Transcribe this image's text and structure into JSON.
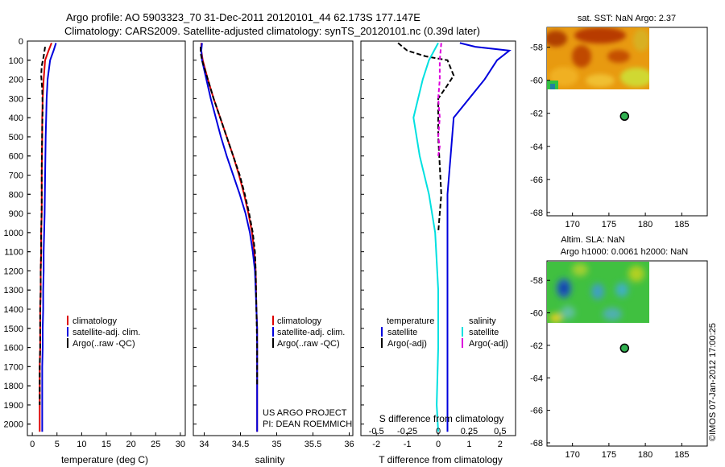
{
  "titles": {
    "line1": "Argo profile: AO 5903323_70 31-Dec-2011 20120101_44 62.173S 177.147E",
    "line2": "Climatology: CARS2009. Satellite-adjusted climatology: synTS_20120101.nc (0.39d later)"
  },
  "credit": "©IMOS 07-Jan-2012 17:00:25",
  "project": {
    "line1": "US ARGO PROJECT",
    "line2": "PI: DEAN ROEMMICH"
  },
  "colors": {
    "climatology": "#dd0000",
    "satellite": "#0000dd",
    "argo": "#000000",
    "sat_s": "#00e0e0",
    "argo_s": "#dd00dd"
  },
  "chart_data": [
    {
      "type": "line",
      "panel": "temperature",
      "xlabel": "temperature (deg C)",
      "xlim": [
        -1,
        31
      ],
      "xticks": [
        0,
        5,
        10,
        15,
        20,
        25,
        30
      ],
      "ylim": [
        2060,
        0
      ],
      "yticks": [
        0,
        100,
        200,
        300,
        400,
        500,
        600,
        700,
        800,
        900,
        1000,
        1100,
        1200,
        1300,
        1400,
        1500,
        1600,
        1700,
        1800,
        1900,
        2000
      ],
      "legend": [
        "climatology",
        "satellite-adj. clim.",
        "Argo(..raw -QC)"
      ],
      "series": [
        {
          "name": "climatology",
          "x": [
            3.9,
            3.3,
            2.6,
            2.3,
            2.1,
            2.0,
            2.0,
            1.9,
            1.9,
            1.8,
            1.8,
            1.7,
            1.7,
            1.6,
            1.6,
            1.6,
            1.5,
            1.5,
            1.5,
            1.5
          ],
          "y": [
            10,
            50,
            100,
            200,
            300,
            400,
            500,
            700,
            900,
            1000,
            1100,
            1200,
            1300,
            1400,
            1500,
            1600,
            1700,
            1800,
            1900,
            2040
          ]
        },
        {
          "name": "satellite-adj. clim.",
          "x": [
            4.8,
            4.3,
            3.6,
            3.1,
            2.9,
            2.8,
            2.7,
            2.6,
            2.5,
            2.4,
            2.3,
            2.3,
            2.2,
            2.2,
            2.1,
            2.1,
            2.0,
            2.0,
            2.0,
            2.0
          ],
          "y": [
            10,
            50,
            100,
            200,
            300,
            400,
            500,
            700,
            900,
            1000,
            1100,
            1200,
            1300,
            1400,
            1500,
            1600,
            1700,
            1800,
            1900,
            2040
          ]
        },
        {
          "name": "Argo(..raw -QC)",
          "x": [
            2.6,
            2.3,
            1.9,
            1.8,
            2.0,
            2.1,
            2.0,
            1.9,
            1.9,
            1.8,
            1.8,
            1.7,
            1.7,
            1.6,
            1.6,
            1.6,
            1.5,
            1.5,
            1.5
          ],
          "y": [
            30,
            80,
            130,
            180,
            250,
            350,
            450,
            650,
            850,
            1000,
            1100,
            1200,
            1300,
            1400,
            1500,
            1600,
            1700,
            1800,
            1900
          ]
        }
      ]
    },
    {
      "type": "line",
      "panel": "salinity",
      "xlabel": "salinity",
      "xlim": [
        33.85,
        36.05
      ],
      "xticks": [
        34,
        34.5,
        35,
        35.5,
        36
      ],
      "xticklabels": [
        "34",
        "34.5",
        "35",
        "35.5",
        "36"
      ],
      "ylim": [
        2060,
        0
      ],
      "legend": [
        "climatology",
        "satellite-adj. clim.",
        "Argo(..raw -QC)"
      ],
      "series": [
        {
          "name": "climatology",
          "x": [
            33.96,
            33.96,
            33.98,
            34.05,
            34.13,
            34.22,
            34.31,
            34.4,
            34.48,
            34.55,
            34.61,
            34.66,
            34.69,
            34.71,
            34.72,
            34.73,
            34.73,
            34.73,
            34.73,
            34.73,
            34.73
          ],
          "y": [
            10,
            50,
            100,
            200,
            300,
            400,
            500,
            600,
            700,
            800,
            900,
            1000,
            1100,
            1200,
            1400,
            1500,
            1600,
            1700,
            1800,
            1900,
            2040
          ]
        },
        {
          "name": "satellite-adj. clim.",
          "x": [
            33.97,
            33.96,
            33.97,
            34.03,
            34.09,
            34.16,
            34.23,
            34.31,
            34.4,
            34.49,
            34.57,
            34.63,
            34.67,
            34.7,
            34.72,
            34.73,
            34.73,
            34.73,
            34.73,
            34.73,
            34.73
          ],
          "y": [
            10,
            50,
            100,
            200,
            300,
            400,
            500,
            600,
            700,
            800,
            900,
            1000,
            1100,
            1200,
            1400,
            1500,
            1600,
            1700,
            1800,
            1900,
            2040
          ]
        },
        {
          "name": "Argo(..raw -QC)",
          "x": [
            33.95,
            33.95,
            33.97,
            34.05,
            34.13,
            34.22,
            34.31,
            34.4,
            34.49,
            34.56,
            34.62,
            34.67,
            34.7,
            34.71,
            34.72,
            34.73,
            34.73
          ],
          "y": [
            30,
            60,
            100,
            200,
            300,
            400,
            500,
            600,
            700,
            800,
            900,
            1000,
            1100,
            1200,
            1400,
            1600,
            1800
          ]
        }
      ]
    },
    {
      "type": "line",
      "panel": "differences",
      "xlabel": "T difference from climatology",
      "top_label": "S difference from climatology",
      "xlim": [
        -2.5,
        2.5
      ],
      "xticks": [
        -2,
        -1,
        0,
        1,
        2
      ],
      "xticklabels": [
        "-2",
        "-1",
        "0",
        "1",
        "2"
      ],
      "s_xticks": [
        -2,
        -1,
        0,
        1,
        2
      ],
      "s_xticklabels": [
        "-0.5",
        "-0.25",
        "0",
        "0.25",
        "0.5"
      ],
      "ylim": [
        2060,
        0
      ],
      "legend_t": {
        "header": "temperature",
        "items": [
          "satellite",
          "Argo(-adj)"
        ]
      },
      "legend_s": {
        "header": "salinity",
        "items": [
          "satellite",
          "Argo(-adj)"
        ]
      },
      "series": [
        {
          "name": "T satellite",
          "x": [
            0.7,
            1.2,
            2.3,
            1.9,
            1.5,
            1.0,
            0.5,
            0.4,
            0.3,
            0.3,
            0.3,
            0.3,
            0.3,
            0.3,
            0.3,
            0.3,
            0.3,
            0.3,
            0.3
          ],
          "y": [
            10,
            30,
            50,
            100,
            200,
            300,
            400,
            600,
            800,
            1000,
            1200,
            1400,
            1500,
            1600,
            1700,
            1800,
            1900,
            2000,
            2040
          ]
        },
        {
          "name": "T Argo(-adj)",
          "x": [
            -1.3,
            -1.0,
            -0.4,
            0.3,
            0.5,
            0.3,
            0.0,
            0.0,
            0.1,
            0.0
          ],
          "y": [
            10,
            50,
            80,
            100,
            180,
            230,
            300,
            500,
            800,
            1000
          ]
        },
        {
          "name": "S satellite",
          "x": [
            0.0,
            -0.3,
            -0.5,
            -0.8,
            -0.6,
            -0.3,
            -0.1,
            0.0,
            0.0,
            -0.05,
            0.0
          ],
          "y": [
            10,
            100,
            200,
            400,
            600,
            800,
            1000,
            1300,
            1600,
            1900,
            2040
          ]
        },
        {
          "name": "S Argo(-adj)",
          "x": [
            0.1,
            0.05,
            0.05,
            0.0,
            0.05,
            0.0,
            0.05,
            0.0
          ],
          "y": [
            10,
            100,
            200,
            300,
            400,
            500,
            550,
            600
          ]
        }
      ]
    },
    {
      "type": "scatter",
      "panel": "sst_map",
      "title": "sat. SST: NaN Argo: 2.37",
      "xlim": [
        166.5,
        188.5
      ],
      "xticks": [
        170,
        175,
        180,
        185
      ],
      "ylim": [
        -68.2,
        -56.8
      ],
      "yticks": [
        -58,
        -60,
        -62,
        -64,
        -66,
        -68
      ],
      "points": [
        {
          "x": 177.147,
          "y": -62.173
        }
      ]
    },
    {
      "type": "scatter",
      "panel": "sla_map",
      "title_line1": "Altim. SLA: NaN",
      "title_line2": "Argo h1000: 0.0061 h2000: NaN",
      "xlim": [
        166.5,
        188.5
      ],
      "xticks": [
        170,
        175,
        180,
        185
      ],
      "ylim": [
        -68.2,
        -56.8
      ],
      "yticks": [
        -58,
        -60,
        -62,
        -64,
        -66,
        -68
      ],
      "points": [
        {
          "x": 177.147,
          "y": -62.173
        }
      ]
    }
  ]
}
